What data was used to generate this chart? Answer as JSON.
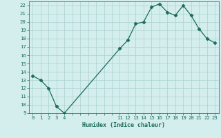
{
  "x": [
    0,
    1,
    2,
    3,
    4,
    11,
    12,
    13,
    14,
    15,
    16,
    17,
    18,
    19,
    20,
    21,
    22,
    23
  ],
  "y": [
    13.5,
    13.0,
    12.0,
    9.8,
    9.0,
    16.8,
    17.8,
    19.8,
    20.0,
    21.8,
    22.2,
    21.2,
    20.8,
    22.0,
    20.8,
    19.2,
    18.0,
    17.5
  ],
  "xlabel": "Humidex (Indice chaleur)",
  "xlim": [
    -0.5,
    23.5
  ],
  "ylim": [
    9,
    22.5
  ],
  "yticks": [
    9,
    10,
    11,
    12,
    13,
    14,
    15,
    16,
    17,
    18,
    19,
    20,
    21,
    22
  ],
  "xtick_show": [
    0,
    1,
    2,
    3,
    4,
    11,
    12,
    13,
    14,
    15,
    16,
    17,
    18,
    19,
    20,
    21,
    22,
    23
  ],
  "line_color": "#1a6b5a",
  "marker": "D",
  "marker_size": 2.5,
  "bg_color": "#d4eeee",
  "grid_color": "#aad0d0",
  "label_color": "#1a6b5a",
  "tick_color": "#1a6b5a",
  "xlabel_fontsize": 6.0,
  "tick_fontsize": 5.2
}
